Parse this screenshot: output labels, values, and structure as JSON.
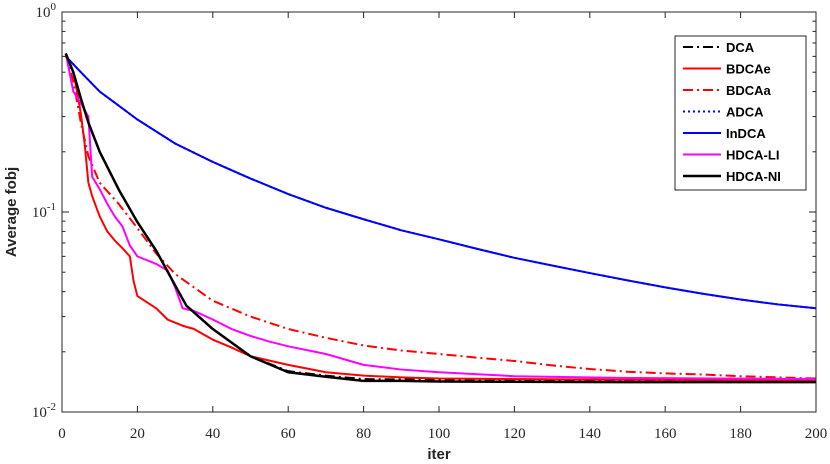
{
  "chart_data": {
    "type": "line",
    "xlabel": "iter",
    "ylabel": "Average fobj",
    "x_scale": "linear",
    "y_scale": "log",
    "xlim": [
      0,
      200
    ],
    "ylim": [
      0.01,
      1
    ],
    "x_ticks": [
      0,
      20,
      40,
      60,
      80,
      100,
      120,
      140,
      160,
      180,
      200
    ],
    "x_tick_labels": [
      "0",
      "20",
      "40",
      "60",
      "80",
      "100",
      "120",
      "140",
      "160",
      "180",
      "200"
    ],
    "y_ticks": [
      {
        "value": 1,
        "base": "10",
        "exp": "0"
      },
      {
        "value": 0.1,
        "base": "10",
        "exp": "-1"
      },
      {
        "value": 0.01,
        "base": "10",
        "exp": "-2"
      }
    ],
    "grid": false,
    "legend_position": "top-right",
    "series": [
      {
        "name": "DCA",
        "color": "#000000",
        "dash": "dashdot",
        "width": 2,
        "points": [
          [
            1,
            0.62
          ],
          [
            3,
            0.5
          ],
          [
            5,
            0.37
          ],
          [
            7,
            0.28
          ],
          [
            10,
            0.2
          ],
          [
            15,
            0.13
          ],
          [
            20,
            0.089
          ],
          [
            25,
            0.064
          ],
          [
            30,
            0.043
          ],
          [
            33,
            0.034
          ],
          [
            40,
            0.026
          ],
          [
            50,
            0.019
          ],
          [
            60,
            0.016
          ],
          [
            70,
            0.0152
          ],
          [
            80,
            0.0146
          ],
          [
            100,
            0.0145
          ],
          [
            150,
            0.0144
          ],
          [
            200,
            0.0144
          ]
        ]
      },
      {
        "name": "BDCAe",
        "color": "#ff0000",
        "dash": "solid",
        "width": 2,
        "points": [
          [
            1,
            0.62
          ],
          [
            3,
            0.5
          ],
          [
            4,
            0.4
          ],
          [
            5,
            0.31
          ],
          [
            6,
            0.22
          ],
          [
            7,
            0.14
          ],
          [
            8,
            0.12
          ],
          [
            10,
            0.095
          ],
          [
            12,
            0.08
          ],
          [
            14,
            0.072
          ],
          [
            16,
            0.066
          ],
          [
            18,
            0.06
          ],
          [
            19,
            0.045
          ],
          [
            20,
            0.038
          ],
          [
            25,
            0.033
          ],
          [
            28,
            0.029
          ],
          [
            32,
            0.027
          ],
          [
            35,
            0.026
          ],
          [
            40,
            0.023
          ],
          [
            45,
            0.021
          ],
          [
            50,
            0.019
          ],
          [
            60,
            0.0172
          ],
          [
            70,
            0.0158
          ],
          [
            80,
            0.0152
          ],
          [
            90,
            0.0149
          ],
          [
            100,
            0.0147
          ],
          [
            150,
            0.0145
          ],
          [
            200,
            0.0144
          ]
        ]
      },
      {
        "name": "BDCAa",
        "color": "#ff0000",
        "dash": "dashdot",
        "width": 2,
        "points": [
          [
            1,
            0.62
          ],
          [
            3,
            0.45
          ],
          [
            5,
            0.28
          ],
          [
            7,
            0.19
          ],
          [
            10,
            0.14
          ],
          [
            15,
            0.11
          ],
          [
            20,
            0.083
          ],
          [
            25,
            0.062
          ],
          [
            30,
            0.049
          ],
          [
            35,
            0.042
          ],
          [
            40,
            0.036
          ],
          [
            50,
            0.03
          ],
          [
            60,
            0.026
          ],
          [
            70,
            0.0235
          ],
          [
            80,
            0.0215
          ],
          [
            90,
            0.0203
          ],
          [
            100,
            0.0195
          ],
          [
            110,
            0.0187
          ],
          [
            120,
            0.018
          ],
          [
            130,
            0.0171
          ],
          [
            140,
            0.0164
          ],
          [
            150,
            0.0159
          ],
          [
            160,
            0.0156
          ],
          [
            170,
            0.0154
          ],
          [
            180,
            0.0151
          ],
          [
            190,
            0.0149
          ],
          [
            200,
            0.0147
          ]
        ]
      },
      {
        "name": "ADCA",
        "color": "#0000ff",
        "dash": "dotted",
        "width": 2,
        "points": [
          [
            1,
            0.6
          ],
          [
            5,
            0.5
          ],
          [
            10,
            0.4
          ],
          [
            20,
            0.29
          ],
          [
            30,
            0.22
          ],
          [
            40,
            0.178
          ],
          [
            50,
            0.147
          ],
          [
            60,
            0.123
          ],
          [
            70,
            0.105
          ],
          [
            80,
            0.092
          ],
          [
            90,
            0.081
          ],
          [
            100,
            0.073
          ],
          [
            110,
            0.0655
          ],
          [
            120,
            0.059
          ],
          [
            130,
            0.054
          ],
          [
            140,
            0.0495
          ],
          [
            150,
            0.0455
          ],
          [
            160,
            0.042
          ],
          [
            170,
            0.039
          ],
          [
            180,
            0.0365
          ],
          [
            190,
            0.0345
          ],
          [
            200,
            0.033
          ]
        ]
      },
      {
        "name": "InDCA",
        "color": "#0000ff",
        "dash": "solid",
        "width": 2,
        "points": [
          [
            1,
            0.6
          ],
          [
            5,
            0.5
          ],
          [
            10,
            0.4
          ],
          [
            20,
            0.29
          ],
          [
            30,
            0.22
          ],
          [
            40,
            0.178
          ],
          [
            50,
            0.147
          ],
          [
            60,
            0.123
          ],
          [
            70,
            0.105
          ],
          [
            80,
            0.092
          ],
          [
            90,
            0.081
          ],
          [
            100,
            0.073
          ],
          [
            110,
            0.0655
          ],
          [
            120,
            0.059
          ],
          [
            130,
            0.054
          ],
          [
            140,
            0.0495
          ],
          [
            150,
            0.0455
          ],
          [
            160,
            0.042
          ],
          [
            170,
            0.039
          ],
          [
            180,
            0.0365
          ],
          [
            190,
            0.0345
          ],
          [
            200,
            0.033
          ]
        ]
      },
      {
        "name": "HDCA-LI",
        "color": "#ff00ff",
        "dash": "solid",
        "width": 2,
        "points": [
          [
            1,
            0.62
          ],
          [
            3,
            0.4
          ],
          [
            5,
            0.35
          ],
          [
            7,
            0.3
          ],
          [
            8,
            0.15
          ],
          [
            10,
            0.13
          ],
          [
            12,
            0.11
          ],
          [
            14,
            0.095
          ],
          [
            16,
            0.085
          ],
          [
            18,
            0.068
          ],
          [
            20,
            0.06
          ],
          [
            25,
            0.055
          ],
          [
            28,
            0.051
          ],
          [
            30,
            0.042
          ],
          [
            32,
            0.033
          ],
          [
            35,
            0.032
          ],
          [
            40,
            0.029
          ],
          [
            45,
            0.026
          ],
          [
            50,
            0.024
          ],
          [
            55,
            0.0225
          ],
          [
            60,
            0.0213
          ],
          [
            70,
            0.0195
          ],
          [
            80,
            0.0172
          ],
          [
            90,
            0.0163
          ],
          [
            100,
            0.0158
          ],
          [
            120,
            0.0151
          ],
          [
            150,
            0.0148
          ],
          [
            200,
            0.0146
          ]
        ]
      },
      {
        "name": "HDCA-NI",
        "color": "#000000",
        "dash": "solid",
        "width": 2.5,
        "points": [
          [
            1,
            0.62
          ],
          [
            3,
            0.5
          ],
          [
            5,
            0.37
          ],
          [
            7,
            0.28
          ],
          [
            10,
            0.2
          ],
          [
            15,
            0.13
          ],
          [
            20,
            0.089
          ],
          [
            25,
            0.064
          ],
          [
            30,
            0.043
          ],
          [
            33,
            0.034
          ],
          [
            40,
            0.026
          ],
          [
            50,
            0.019
          ],
          [
            60,
            0.0158
          ],
          [
            70,
            0.015
          ],
          [
            80,
            0.0143
          ],
          [
            90,
            0.0143
          ],
          [
            100,
            0.0142
          ],
          [
            150,
            0.0141
          ],
          [
            200,
            0.0141
          ]
        ]
      }
    ]
  }
}
